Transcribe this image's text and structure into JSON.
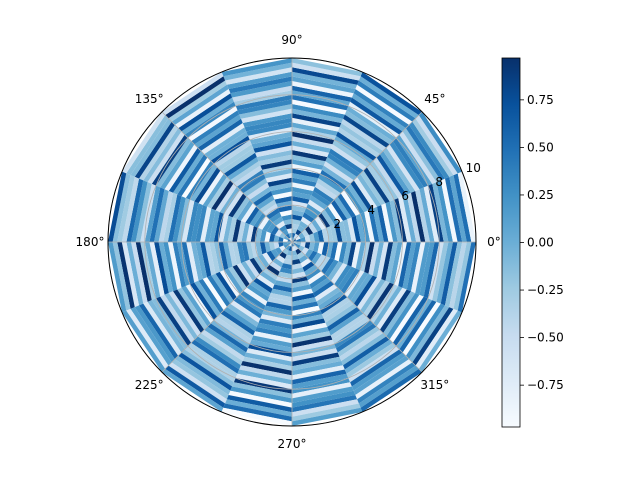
{
  "chart_data": {
    "type": "heatmap",
    "subtype": "polar",
    "title": "",
    "colormap": "Blues",
    "angular_tick_labels": [
      "0°",
      "45°",
      "90°",
      "135°",
      "180°",
      "225°",
      "270°",
      "315°"
    ],
    "angular_ticks_deg": [
      0,
      45,
      90,
      135,
      180,
      225,
      270,
      315
    ],
    "radial_tick_labels": [
      "2",
      "4",
      "6",
      "8",
      "10"
    ],
    "radial_ticks": [
      2,
      4,
      6,
      8,
      10
    ],
    "rlim": [
      0,
      10
    ],
    "theta_sectors": 16,
    "radial_bins": 40,
    "values_description": "sin-like pattern in [-1, 1] over theta x r grid",
    "colorbar": {
      "vmin": -0.97,
      "vmax": 0.97,
      "tick_labels": [
        "0.75",
        "0.50",
        "0.25",
        "0.00",
        "−0.25",
        "−0.50",
        "−0.75"
      ],
      "tick_values": [
        0.75,
        0.5,
        0.25,
        0.0,
        -0.25,
        -0.5,
        -0.75
      ]
    },
    "grid": true
  }
}
